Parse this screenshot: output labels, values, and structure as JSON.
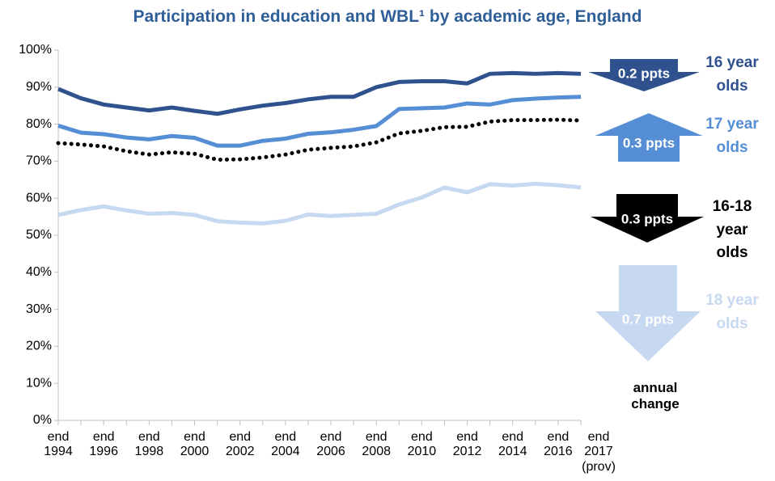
{
  "chart_data": {
    "type": "line",
    "title": "Participation in education and WBL¹ by academic age, England",
    "categories": [
      "end\n1994",
      null,
      "end\n1996",
      null,
      "end\n1998",
      null,
      "end\n2000",
      null,
      "end\n2002",
      null,
      "end\n2004",
      null,
      "end\n2006",
      null,
      "end\n2008",
      null,
      "end\n2010",
      null,
      "end\n2012",
      null,
      "end\n2014",
      null,
      "end\n2016",
      "end\n2017\n(prov)"
    ],
    "ylim": [
      0,
      100
    ],
    "yticks": [
      {
        "value": 0,
        "label": "0%"
      },
      {
        "value": 10,
        "label": "10%"
      },
      {
        "value": 20,
        "label": "20%"
      },
      {
        "value": 30,
        "label": "30%"
      },
      {
        "value": 40,
        "label": "40%"
      },
      {
        "value": 50,
        "label": "50%"
      },
      {
        "value": 60,
        "label": "60%"
      },
      {
        "value": 70,
        "label": "70%"
      },
      {
        "value": 80,
        "label": "80%"
      },
      {
        "value": 90,
        "label": "90%"
      },
      {
        "value": 100,
        "label": "100%"
      }
    ],
    "grid": false,
    "annual_change_label": "annual\nchange",
    "series": [
      {
        "name": "16 year\nolds",
        "color": "#2F528F",
        "dash": "solid",
        "change_label": "0.2 ppts",
        "change_direction": "down",
        "values": [
          89.5,
          87,
          85.3,
          84.5,
          83.7,
          84.5,
          83.6,
          82.8,
          84,
          85,
          85.7,
          86.7,
          87.4,
          87.4,
          90,
          91.4,
          91.6,
          91.6,
          91,
          93.6,
          93.8,
          93.6,
          93.8,
          93.6
        ]
      },
      {
        "name": "17 year\nolds",
        "color": "#558ED5",
        "dash": "solid",
        "change_label": "0.3 ppts",
        "change_direction": "up",
        "values": [
          79.6,
          77.7,
          77.3,
          76.4,
          75.9,
          76.8,
          76.3,
          74.2,
          74.2,
          75.5,
          76.1,
          77.4,
          77.8,
          78.5,
          79.5,
          84.1,
          84.3,
          84.5,
          85.6,
          85.3,
          86.5,
          86.9,
          87.2,
          87.4
        ]
      },
      {
        "name": "16-18\nyear\nolds",
        "color": "#000000",
        "dash": "dotted",
        "change_label": "0.3 ppts",
        "change_direction": "down",
        "values": [
          74.9,
          74.5,
          74,
          72.7,
          71.8,
          72.4,
          72,
          70.4,
          70.5,
          71,
          71.8,
          73.1,
          73.6,
          74,
          75.1,
          77.5,
          78.2,
          79.2,
          79.3,
          80.7,
          81.1,
          81.1,
          81.2,
          81
        ]
      },
      {
        "name": "18 year\nolds",
        "color": "#C6D9F1",
        "dash": "solid",
        "change_label": "0.7 ppts",
        "change_direction": "down",
        "values": [
          55.5,
          56.8,
          57.8,
          56.7,
          55.8,
          56,
          55.5,
          53.8,
          53.4,
          53.2,
          53.9,
          55.6,
          55.2,
          55.5,
          55.8,
          58.3,
          60.2,
          62.9,
          61.6,
          63.8,
          63.4,
          63.9,
          63.5,
          62.9
        ]
      }
    ]
  }
}
